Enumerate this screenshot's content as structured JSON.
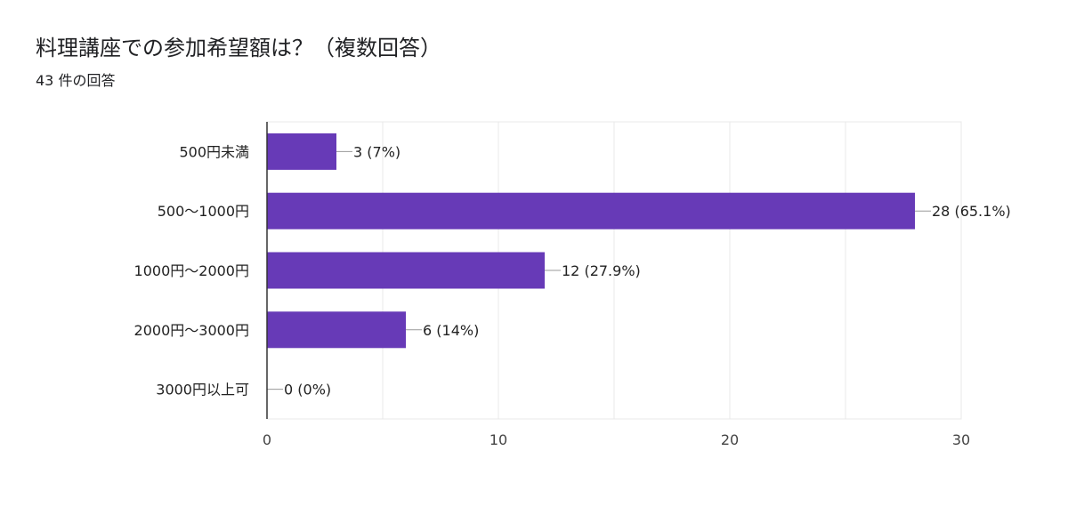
{
  "header": {
    "title": "料理講座での参加希望額は？（複数回答）",
    "response_count": "43 件の回答"
  },
  "colors": {
    "bar": "#673ab7",
    "grid": "#e8e8e8",
    "axis": "#333333"
  },
  "chart_data": {
    "type": "bar",
    "orientation": "horizontal",
    "categories": [
      "500円未満",
      "500〜1000円",
      "1000円〜2000円",
      "2000円〜3000円",
      "3000円以上可"
    ],
    "values": [
      3,
      28,
      12,
      6,
      0
    ],
    "value_labels": [
      "3 (7%)",
      "28 (65.1%)",
      "12 (27.9%)",
      "6 (14%)",
      "0 (0%)"
    ],
    "xlim": [
      0,
      30
    ],
    "x_ticks": [
      0,
      10,
      20,
      30
    ],
    "grid": true,
    "title": "料理講座での参加希望額は？（複数回答）"
  }
}
